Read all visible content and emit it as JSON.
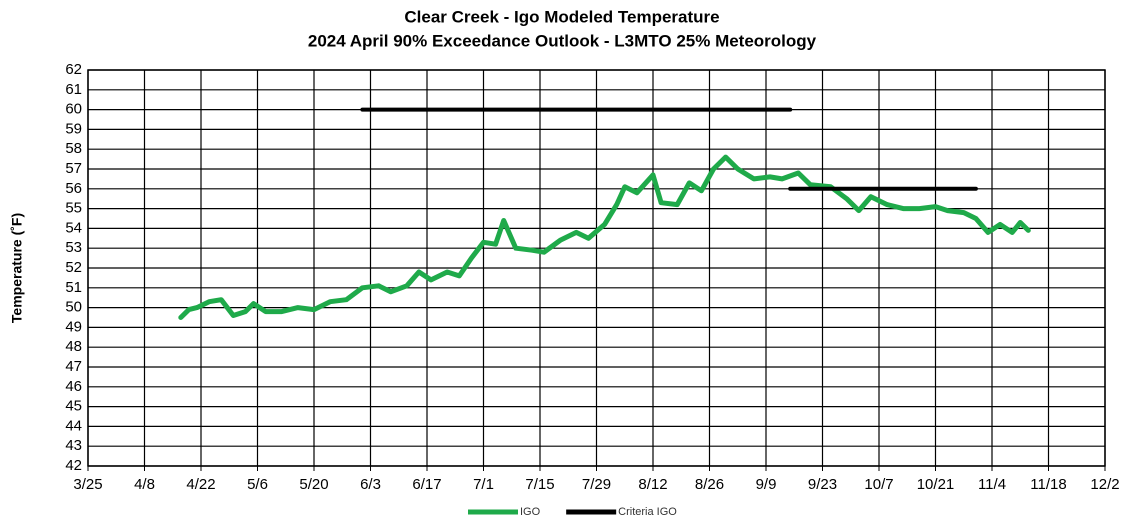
{
  "chart_data": {
    "type": "line",
    "title": "Clear Creek - Igo Modeled Temperature",
    "subtitle": "2024 April 90%  Exceedance Outlook - L3MTO 25%  Meteorology",
    "y_label": "Temperature (˚F)",
    "xlim": [
      "3/25",
      "12/2"
    ],
    "xticks": [
      "3/25",
      "4/8",
      "4/22",
      "5/6",
      "5/20",
      "6/3",
      "6/17",
      "7/1",
      "7/15",
      "7/29",
      "8/12",
      "8/26",
      "9/9",
      "9/23",
      "10/7",
      "10/21",
      "11/4",
      "11/18",
      "12/2"
    ],
    "ylim": [
      42,
      62
    ],
    "yticks": [
      42,
      43,
      44,
      45,
      46,
      47,
      48,
      49,
      50,
      51,
      52,
      53,
      54,
      55,
      56,
      57,
      58,
      59,
      60,
      61,
      62
    ],
    "grid": true,
    "legend": "bottom",
    "series": [
      {
        "name": "IGO",
        "color": "#1faa4a",
        "x": [
          "4/17",
          "4/19",
          "4/21",
          "4/24",
          "4/27",
          "4/30",
          "5/3",
          "5/5",
          "5/8",
          "5/12",
          "5/16",
          "5/20",
          "5/24",
          "5/28",
          "6/1",
          "6/5",
          "6/8",
          "6/12",
          "6/15",
          "6/18",
          "6/22",
          "6/25",
          "6/28",
          "7/1",
          "7/4",
          "7/6",
          "7/9",
          "7/13",
          "7/16",
          "7/20",
          "7/24",
          "7/27",
          "7/31",
          "8/3",
          "8/5",
          "8/8",
          "8/12",
          "8/14",
          "8/18",
          "8/21",
          "8/24",
          "8/27",
          "8/30",
          "9/2",
          "9/6",
          "9/10",
          "9/13",
          "9/17",
          "9/20",
          "9/25",
          "9/29",
          "10/2",
          "10/5",
          "10/9",
          "10/13",
          "10/17",
          "10/21",
          "10/24",
          "10/28",
          "10/31",
          "11/3",
          "11/6",
          "11/9",
          "11/11",
          "11/13"
        ],
        "values": [
          49.5,
          49.9,
          50.0,
          50.3,
          50.4,
          49.6,
          49.8,
          50.2,
          49.8,
          49.8,
          50.0,
          49.9,
          50.3,
          50.4,
          51.0,
          51.1,
          50.8,
          51.1,
          51.8,
          51.4,
          51.8,
          51.6,
          52.5,
          53.3,
          53.2,
          54.4,
          53.0,
          52.9,
          52.8,
          53.4,
          53.8,
          53.5,
          54.2,
          55.2,
          56.1,
          55.8,
          56.7,
          55.3,
          55.2,
          56.3,
          55.9,
          57.0,
          57.6,
          57.0,
          56.5,
          56.6,
          56.5,
          56.8,
          56.2,
          56.1,
          55.5,
          54.9,
          55.6,
          55.2,
          55.0,
          55.0,
          55.1,
          54.9,
          54.8,
          54.5,
          53.8,
          54.2,
          53.8,
          54.3,
          53.9
        ]
      },
      {
        "name": "Criteria IGO",
        "color": "#000000",
        "x": [
          "6/1",
          "9/15",
          "9/16",
          "9/15",
          "10/31"
        ],
        "values": [
          60,
          60,
          null,
          56,
          56
        ]
      }
    ]
  }
}
